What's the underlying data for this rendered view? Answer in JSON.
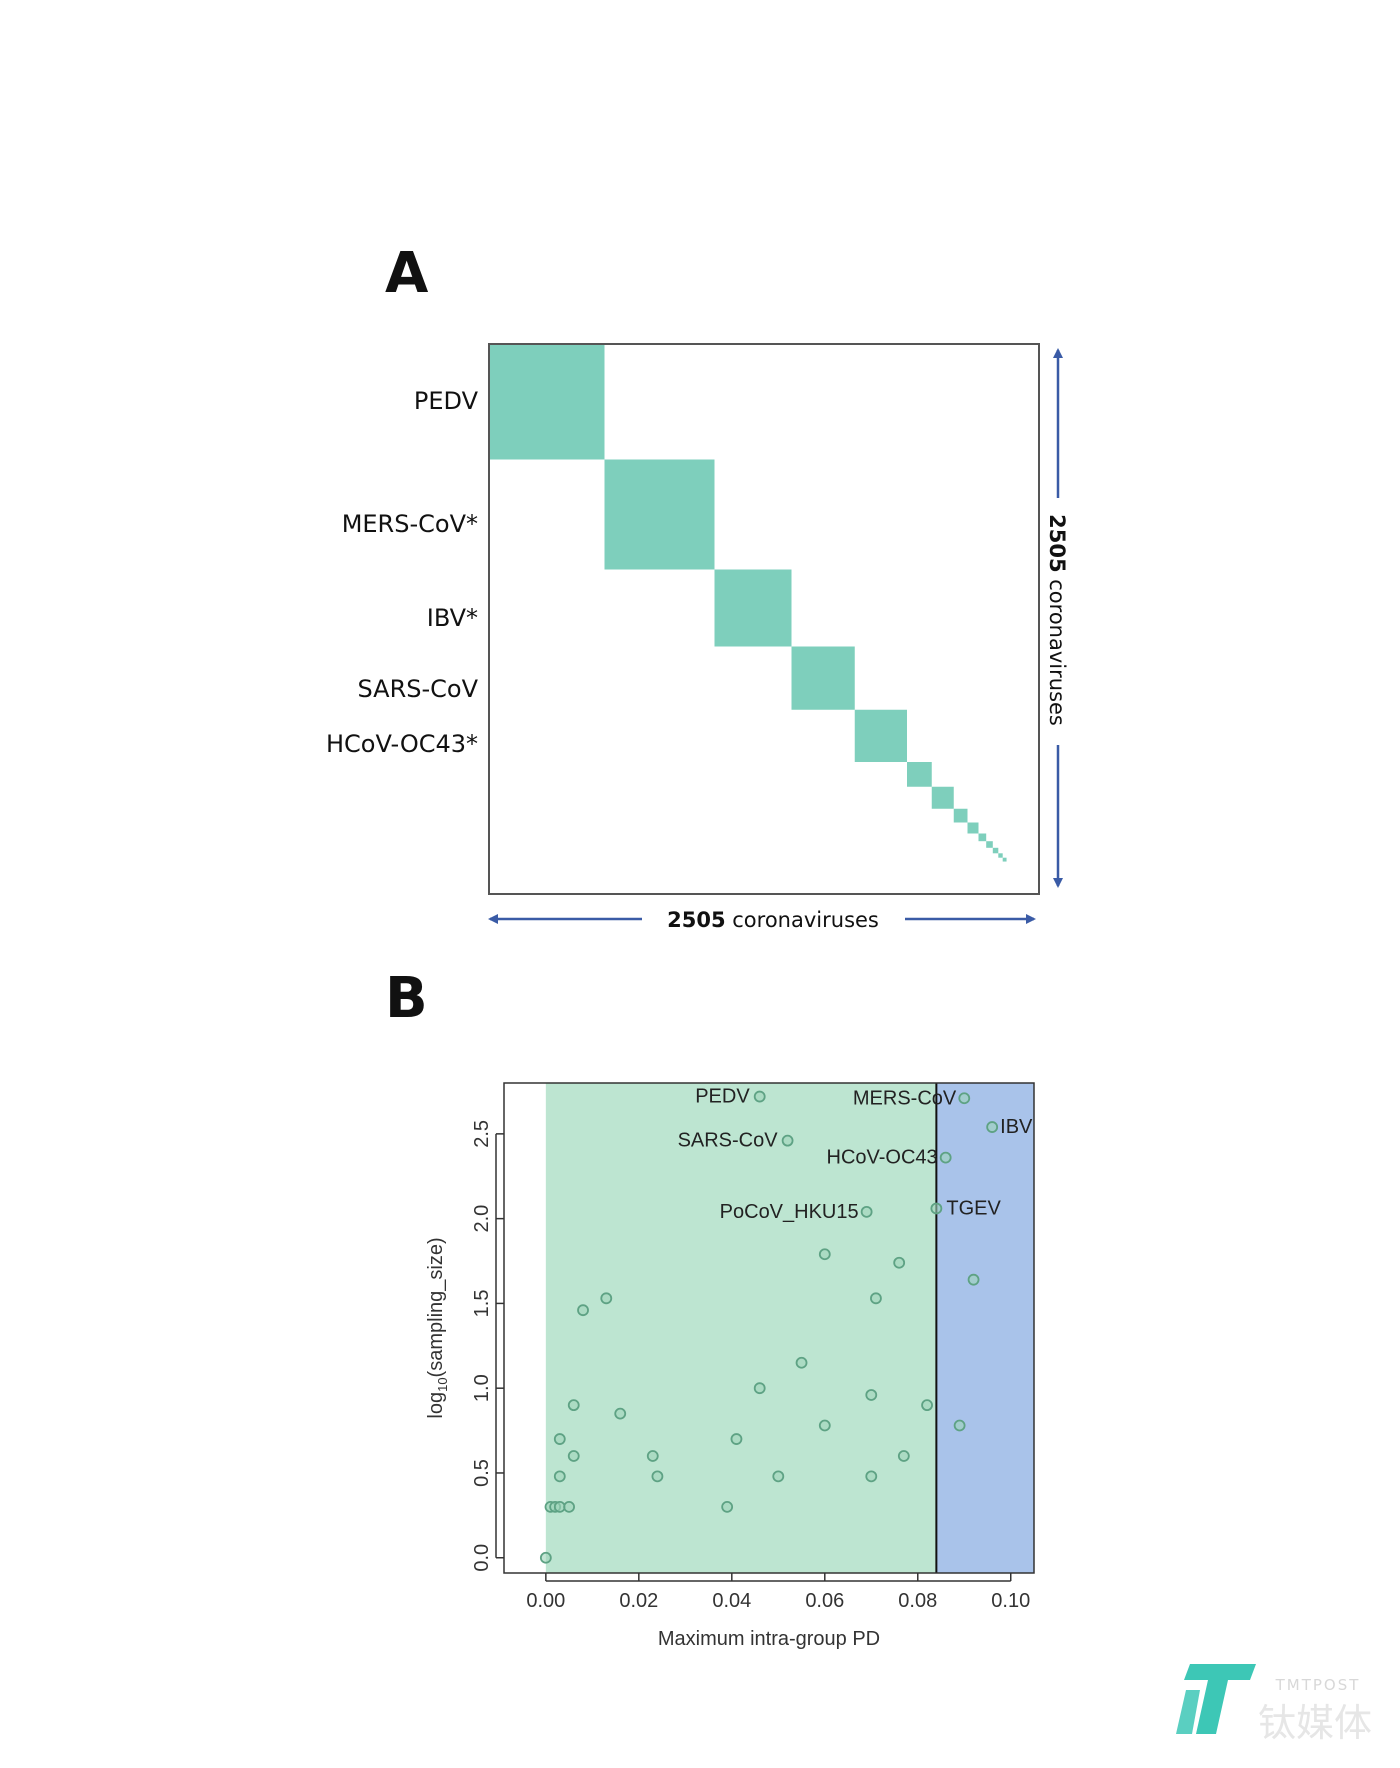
{
  "panel_a": {
    "letter": "A",
    "row_labels": [
      "PEDV",
      "MERS-CoV*",
      "IBV*",
      "SARS-CoV",
      "HCoV-OC43*"
    ],
    "dim_label_bold": "2505",
    "dim_label_text": "coronaviruses",
    "block_color": "#7ECFBC",
    "arrow_color": "#3A5BA6",
    "blocks": [
      0.21,
      0.2,
      0.14,
      0.115,
      0.095,
      0.045,
      0.04,
      0.025,
      0.02,
      0.014,
      0.012,
      0.01,
      0.008,
      0.007
    ]
  },
  "panel_b": {
    "letter": "B",
    "green_color": "#BDE5D1",
    "blue_color": "#A9C3EA",
    "point_color": "#5EA284"
  },
  "chart_data": {
    "type": "scatter",
    "xlabel": "Maximum intra-group PD",
    "ylabel_main": "log",
    "ylabel_sub": "10",
    "ylabel_rest": "(sampling_size)",
    "xlim": [
      -0.009,
      0.105
    ],
    "ylim": [
      -0.09,
      2.8
    ],
    "xticks": [
      "0.00",
      "0.02",
      "0.04",
      "0.06",
      "0.08",
      "0.10"
    ],
    "xtick_values": [
      0,
      0.02,
      0.04,
      0.06,
      0.08,
      0.1
    ],
    "yticks": [
      "0.0",
      "0.5",
      "1.0",
      "1.5",
      "2.0",
      "2.5"
    ],
    "ytick_values": [
      0,
      0.5,
      1.0,
      1.5,
      2.0,
      2.5
    ],
    "green_region": [
      0,
      0.084
    ],
    "blue_region": [
      0.084,
      0.105
    ],
    "threshold": 0.084,
    "points": [
      {
        "x": 0.046,
        "y": 2.72,
        "label": "PEDV"
      },
      {
        "x": 0.09,
        "y": 2.71,
        "label": "MERS-CoV"
      },
      {
        "x": 0.096,
        "y": 2.54,
        "label": "IBV"
      },
      {
        "x": 0.052,
        "y": 2.46,
        "label": "SARS-CoV"
      },
      {
        "x": 0.086,
        "y": 2.36,
        "label": "HCoV-OC43"
      },
      {
        "x": 0.084,
        "y": 2.06,
        "label": "TGEV"
      },
      {
        "x": 0.069,
        "y": 2.04,
        "label": "PoCoV_HKU15"
      },
      {
        "x": 0.06,
        "y": 1.79
      },
      {
        "x": 0.076,
        "y": 1.74
      },
      {
        "x": 0.092,
        "y": 1.64
      },
      {
        "x": 0.013,
        "y": 1.53
      },
      {
        "x": 0.071,
        "y": 1.53
      },
      {
        "x": 0.008,
        "y": 1.46
      },
      {
        "x": 0.055,
        "y": 1.15
      },
      {
        "x": 0.046,
        "y": 1.0
      },
      {
        "x": 0.07,
        "y": 0.96
      },
      {
        "x": 0.006,
        "y": 0.9
      },
      {
        "x": 0.082,
        "y": 0.9
      },
      {
        "x": 0.016,
        "y": 0.85
      },
      {
        "x": 0.06,
        "y": 0.78
      },
      {
        "x": 0.089,
        "y": 0.78
      },
      {
        "x": 0.003,
        "y": 0.7
      },
      {
        "x": 0.041,
        "y": 0.7
      },
      {
        "x": 0.006,
        "y": 0.6
      },
      {
        "x": 0.023,
        "y": 0.6
      },
      {
        "x": 0.077,
        "y": 0.6
      },
      {
        "x": 0.003,
        "y": 0.48
      },
      {
        "x": 0.024,
        "y": 0.48
      },
      {
        "x": 0.05,
        "y": 0.48
      },
      {
        "x": 0.07,
        "y": 0.48
      },
      {
        "x": 0.001,
        "y": 0.3
      },
      {
        "x": 0.002,
        "y": 0.3
      },
      {
        "x": 0.003,
        "y": 0.3
      },
      {
        "x": 0.005,
        "y": 0.3
      },
      {
        "x": 0.039,
        "y": 0.3
      },
      {
        "x": 0.0,
        "y": 0.0
      }
    ]
  },
  "watermark": {
    "small_text": "TMTPOST",
    "big_text": "钛媒体",
    "color": "#3DC7B6"
  }
}
